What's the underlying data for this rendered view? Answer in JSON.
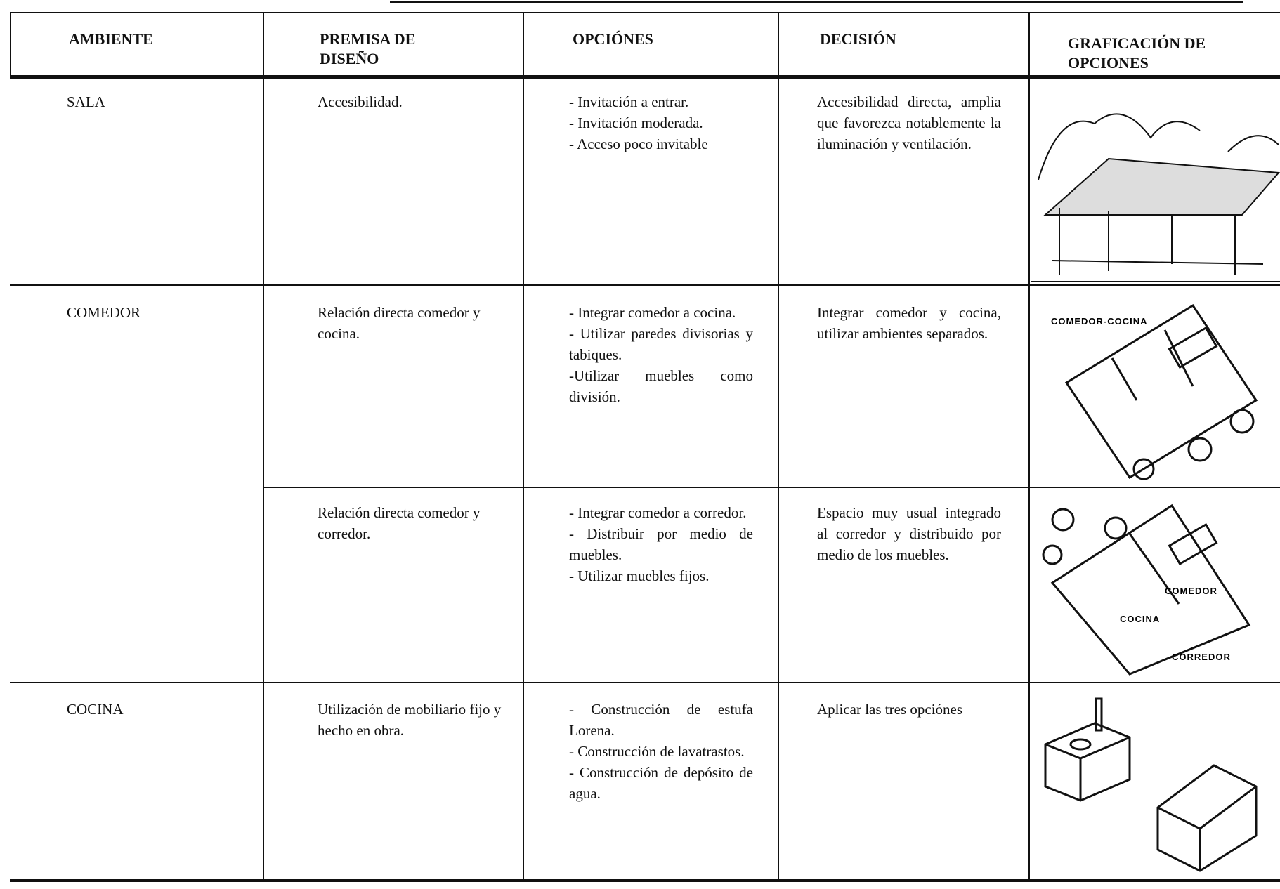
{
  "header": {
    "columns": [
      "AMBIENTE",
      "PREMISA DE DISEÑO",
      "OPCIÓNES",
      "DECISIÓN",
      "GRAFICACIÓN DE OPCIONES"
    ]
  },
  "rows": [
    {
      "ambiente": "SALA",
      "premisas": [
        {
          "premisa": "Accesibilidad.",
          "opciones": [
            "- Invitación a entrar.",
            "- Invitación moderada.",
            "- Acceso poco invitable"
          ],
          "decision": "Accesibilidad directa, amplia que favorezca notablemente la iluminación y ventilación."
        }
      ]
    },
    {
      "ambiente": "COMEDOR",
      "premisas": [
        {
          "premisa": "Relación directa comedor y cocina.",
          "opciones": [
            "- Integrar comedor a cocina.",
            "- Utilizar paredes divisorias y tabiques.",
            "-Utilizar muebles como división."
          ],
          "decision": "Integrar comedor y cocina, utilizar ambientes separados.",
          "labels": [
            "COMEDOR-COCINA"
          ]
        },
        {
          "premisa": "Relación directa comedor y corredor.",
          "opciones": [
            "- Integrar comedor a corredor.",
            "- Distribuir por medio de muebles.",
            "- Utilizar muebles fijos."
          ],
          "decision": "Espacio muy usual integrado al corredor y distribuido por medio de los muebles.",
          "labels": [
            "COMEDOR",
            "COCINA",
            "CORREDOR"
          ]
        }
      ]
    },
    {
      "ambiente": "COCINA",
      "premisas": [
        {
          "premisa": "Utilización de mobiliario fijo y hecho en obra.",
          "opciones": [
            "- Construcción de estufa Lorena.",
            "- Construcción de lavatrastos.",
            "- Construcción de depósito de agua."
          ],
          "decision": "Aplicar las tres opciónes"
        }
      ]
    }
  ]
}
